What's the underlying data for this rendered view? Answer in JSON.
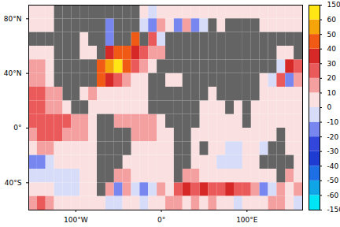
{
  "chart_data": {
    "type": "heatmap",
    "lon": [
      -150,
      -140,
      -130,
      -120,
      -110,
      -100,
      -90,
      -80,
      -70,
      -60,
      -50,
      -40,
      -30,
      -20,
      -10,
      0,
      10,
      20,
      30,
      40,
      50,
      60,
      70,
      80,
      90,
      100,
      110,
      120,
      130,
      140,
      150,
      160
    ],
    "lat": [
      85,
      75,
      65,
      55,
      45,
      35,
      25,
      15,
      5,
      -5,
      -15,
      -25,
      -35,
      -45,
      -55
    ],
    "values": [
      [
        0,
        0,
        0,
        null,
        null,
        null,
        null,
        null,
        null,
        null,
        null,
        null,
        null,
        0,
        -10,
        0,
        0,
        0,
        0,
        0,
        0,
        0,
        0,
        0,
        0,
        0,
        0,
        0,
        0,
        0,
        0,
        0
      ],
      [
        0,
        0,
        0,
        null,
        null,
        null,
        null,
        null,
        null,
        -20,
        null,
        null,
        null,
        -10,
        -20,
        10,
        0,
        -20,
        10,
        -20,
        -10,
        null,
        0,
        null,
        null,
        null,
        null,
        0,
        0,
        0,
        0,
        0
      ],
      [
        null,
        null,
        null,
        null,
        null,
        null,
        0,
        null,
        null,
        -20,
        null,
        null,
        40,
        null,
        20,
        -10,
        null,
        null,
        null,
        null,
        null,
        null,
        null,
        null,
        null,
        null,
        null,
        null,
        null,
        null,
        null,
        null
      ],
      [
        0,
        0,
        5,
        null,
        null,
        null,
        0,
        0,
        null,
        30,
        40,
        40,
        30,
        20,
        10,
        10,
        null,
        null,
        null,
        null,
        null,
        null,
        null,
        null,
        null,
        null,
        null,
        null,
        null,
        0,
        0,
        null
      ],
      [
        10,
        10,
        5,
        null,
        null,
        null,
        null,
        null,
        40,
        50,
        60,
        40,
        20,
        10,
        5,
        null,
        null,
        null,
        null,
        null,
        null,
        null,
        null,
        null,
        null,
        null,
        null,
        null,
        null,
        -10,
        30,
        20
      ],
      [
        10,
        10,
        5,
        null,
        null,
        null,
        null,
        null,
        40,
        30,
        20,
        10,
        5,
        5,
        null,
        null,
        0,
        0,
        null,
        null,
        null,
        null,
        null,
        null,
        null,
        null,
        null,
        0,
        -10,
        20,
        -20,
        10
      ],
      [
        20,
        20,
        15,
        10,
        null,
        null,
        5,
        10,
        5,
        5,
        0,
        0,
        0,
        0,
        null,
        null,
        null,
        null,
        null,
        null,
        null,
        0,
        null,
        null,
        null,
        null,
        null,
        0,
        0,
        5,
        0,
        5
      ],
      [
        20,
        20,
        15,
        10,
        5,
        null,
        null,
        5,
        5,
        5,
        5,
        0,
        0,
        0,
        null,
        null,
        null,
        null,
        null,
        null,
        0,
        0,
        0,
        null,
        0,
        null,
        0,
        0,
        0,
        5,
        5,
        5
      ],
      [
        20,
        25,
        25,
        20,
        20,
        15,
        10,
        5,
        null,
        null,
        10,
        15,
        15,
        15,
        10,
        5,
        null,
        null,
        null,
        null,
        0,
        0,
        0,
        0,
        0,
        null,
        0,
        0,
        0,
        5,
        5,
        5
      ],
      [
        15,
        20,
        20,
        20,
        15,
        10,
        10,
        5,
        null,
        null,
        null,
        null,
        10,
        10,
        10,
        5,
        5,
        null,
        null,
        0,
        0,
        0,
        0,
        0,
        0,
        0,
        0,
        0,
        0,
        null,
        0,
        0
      ],
      [
        5,
        10,
        10,
        5,
        0,
        0,
        0,
        5,
        null,
        null,
        null,
        null,
        5,
        5,
        5,
        5,
        5,
        null,
        null,
        0,
        null,
        0,
        0,
        -10,
        -10,
        0,
        0,
        -10,
        null,
        null,
        0,
        0
      ],
      [
        -15,
        -20,
        -10,
        5,
        0,
        0,
        0,
        5,
        null,
        null,
        null,
        5,
        5,
        0,
        0,
        5,
        5,
        null,
        null,
        0,
        0,
        0,
        -5,
        -10,
        -5,
        0,
        0,
        null,
        null,
        null,
        null,
        0
      ],
      [
        -5,
        -10,
        -10,
        -5,
        -10,
        -5,
        0,
        5,
        null,
        null,
        10,
        10,
        5,
        5,
        5,
        5,
        5,
        null,
        10,
        10,
        0,
        0,
        0,
        0,
        0,
        0,
        0,
        5,
        5,
        null,
        10,
        5
      ],
      [
        5,
        0,
        5,
        -5,
        -10,
        -5,
        0,
        5,
        null,
        10,
        -20,
        10,
        -10,
        -20,
        -10,
        10,
        5,
        20,
        30,
        20,
        30,
        20,
        20,
        30,
        20,
        20,
        10,
        -20,
        -10,
        10,
        5,
        10
      ],
      [
        10,
        20,
        10,
        5,
        5,
        0,
        5,
        0,
        0,
        -10,
        -10,
        0,
        5,
        -5,
        5,
        5,
        10,
        10,
        5,
        10,
        5,
        10,
        5,
        0,
        -5,
        5,
        0,
        5,
        10,
        10,
        5,
        -10
      ]
    ],
    "xlim": [
      -155,
      165
    ],
    "ylim": [
      -60,
      90
    ],
    "xticks": [
      {
        "value": -100,
        "label": "100°W"
      },
      {
        "value": 0,
        "label": "0°"
      },
      {
        "value": 100,
        "label": "100°E"
      }
    ],
    "yticks": [
      {
        "value": 80,
        "label": "80°N"
      },
      {
        "value": 40,
        "label": "40°N"
      },
      {
        "value": 0,
        "label": "0°"
      },
      {
        "value": -40,
        "label": "40°S"
      }
    ],
    "colorbar_range": [
      -150,
      150
    ],
    "colorbar_ticks": [
      -150,
      -60,
      -50,
      -40,
      -30,
      -20,
      -10,
      0,
      10,
      20,
      30,
      40,
      50,
      60,
      150
    ],
    "colors": [
      "#00e5f5",
      "#0fa5e6",
      "#1e6ee6",
      "#1e3cd2",
      "#3246dc",
      "#7887f0",
      "#d7dcf8",
      "#fae0e0",
      "#f5a0a0",
      "#eb5a5a",
      "#d72828",
      "#f05a14",
      "#f5a50a",
      "#ffe614"
    ]
  }
}
